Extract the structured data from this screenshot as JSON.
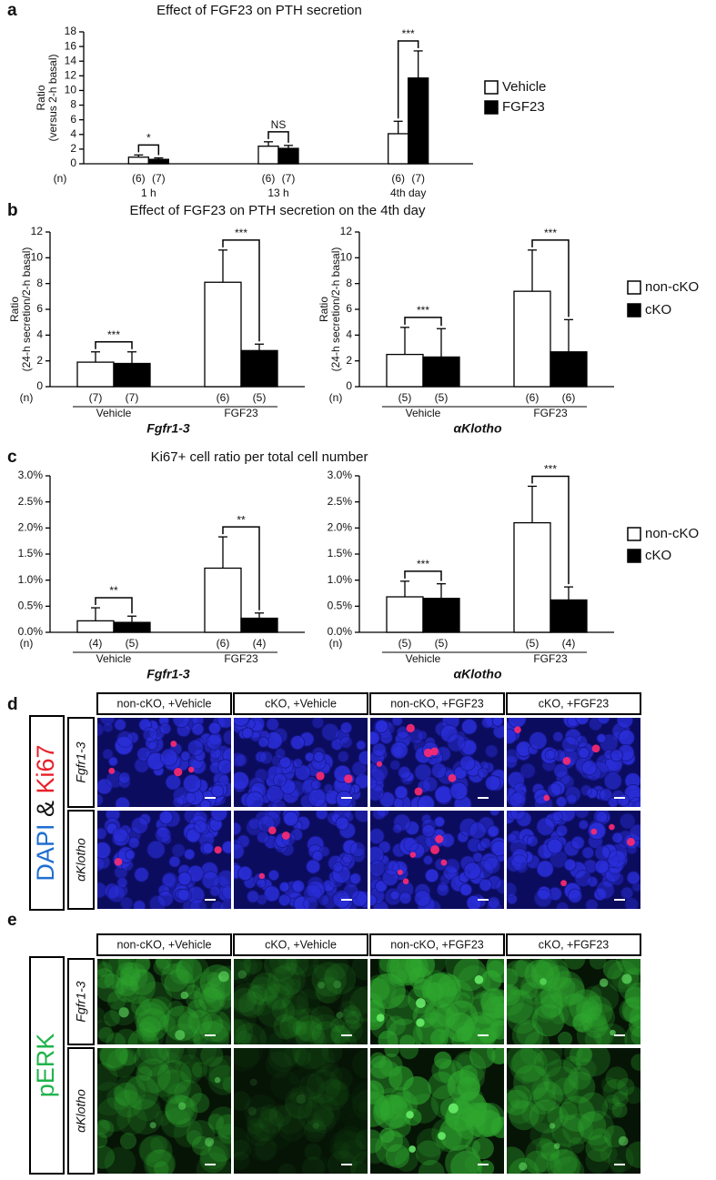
{
  "figure": {
    "panel_labels": [
      "a",
      "b",
      "c",
      "d",
      "e"
    ]
  },
  "chart_data": [
    {
      "type": "bar",
      "title": "Effect of FGF23 on PTH secretion",
      "ylabel": [
        "Ratio",
        "(versus 2-h basal)"
      ],
      "categories": [
        "1 h",
        "13 h",
        "4th day"
      ],
      "n_label": "(n)",
      "series": [
        {
          "name": "Vehicle",
          "color": "#ffffff",
          "values": [
            0.9,
            2.4,
            4.1
          ],
          "errors": [
            0.3,
            0.6,
            1.7
          ],
          "n_labels": [
            "(6)",
            "(6)",
            "(6)"
          ]
        },
        {
          "name": "FGF23",
          "color": "#000000",
          "values": [
            0.6,
            2.1,
            11.7
          ],
          "errors": [
            0.2,
            0.4,
            3.7
          ],
          "n_labels": [
            "(7)",
            "(7)",
            "(7)"
          ]
        }
      ],
      "significance": [
        "*",
        "NS",
        "***"
      ],
      "ylim": [
        0,
        18
      ],
      "yticks": [
        0,
        2,
        4,
        6,
        8,
        10,
        12,
        14,
        16,
        18
      ],
      "legend": "right"
    },
    {
      "type": "bar",
      "title": "Effect of FGF23 on PTH secretion on the 4th day",
      "ylabel": [
        "Ratio",
        "(24-h secretion/2-h basal)"
      ],
      "categories": [
        "Vehicle",
        "FGF23"
      ],
      "n_label": "(n)",
      "xlabel": "Fgfr1-3",
      "series": [
        {
          "name": "non-cKO",
          "color": "#ffffff",
          "values": [
            1.9,
            8.1
          ],
          "errors": [
            0.8,
            2.5
          ],
          "n_labels": [
            "(7)",
            "(6)"
          ]
        },
        {
          "name": "cKO",
          "color": "#000000",
          "values": [
            1.8,
            2.8
          ],
          "errors": [
            0.9,
            0.5
          ],
          "n_labels": [
            "(7)",
            "(5)"
          ]
        }
      ],
      "significance": [
        "***",
        "***"
      ],
      "ylim": [
        0,
        12
      ],
      "yticks": [
        0,
        2,
        4,
        6,
        8,
        10,
        12
      ]
    },
    {
      "type": "bar",
      "ylabel": [
        "Ratio",
        "(24-h secretion/2-h basal)"
      ],
      "categories": [
        "Vehicle",
        "FGF23"
      ],
      "n_label": "(n)",
      "xlabel": "αKlotho",
      "series": [
        {
          "name": "non-cKO",
          "color": "#ffffff",
          "values": [
            2.5,
            7.4
          ],
          "errors": [
            2.1,
            3.2
          ],
          "n_labels": [
            "(5)",
            "(6)"
          ]
        },
        {
          "name": "cKO",
          "color": "#000000",
          "values": [
            2.3,
            2.7
          ],
          "errors": [
            2.2,
            2.5
          ],
          "n_labels": [
            "(5)",
            "(6)"
          ]
        }
      ],
      "significance": [
        "***",
        "***"
      ],
      "ylim": [
        0,
        12
      ],
      "yticks": [
        0,
        2,
        4,
        6,
        8,
        10,
        12
      ],
      "legend": "right"
    },
    {
      "type": "bar",
      "title": "Ki67+ cell ratio per total cell number",
      "categories": [
        "Vehicle",
        "FGF23"
      ],
      "n_label": "(n)",
      "xlabel": "Fgfr1-3",
      "series": [
        {
          "name": "non-cKO",
          "color": "#ffffff",
          "values": [
            0.22,
            1.23
          ],
          "errors": [
            0.25,
            0.6
          ],
          "n_labels": [
            "(4)",
            "(6)"
          ]
        },
        {
          "name": "cKO",
          "color": "#000000",
          "values": [
            0.19,
            0.27
          ],
          "errors": [
            0.12,
            0.1
          ],
          "n_labels": [
            "(5)",
            "(4)"
          ]
        }
      ],
      "significance": [
        "**",
        "**"
      ],
      "ylim": [
        0,
        3
      ],
      "yticks": [
        {
          "value": 0,
          "label": "0.0%"
        },
        {
          "value": 0.5,
          "label": "0.5%"
        },
        {
          "value": 1,
          "label": "1.0%"
        },
        {
          "value": 1.5,
          "label": "1.5%"
        },
        {
          "value": 2,
          "label": "2.0%"
        },
        {
          "value": 2.5,
          "label": "2.5%"
        },
        {
          "value": 3,
          "label": "3.0%"
        }
      ]
    },
    {
      "type": "bar",
      "categories": [
        "Vehicle",
        "FGF23"
      ],
      "n_label": "(n)",
      "xlabel": "αKlotho",
      "series": [
        {
          "name": "non-cKO",
          "color": "#ffffff",
          "values": [
            0.68,
            2.1
          ],
          "errors": [
            0.3,
            0.7
          ],
          "n_labels": [
            "(5)",
            "(5)"
          ]
        },
        {
          "name": "cKO",
          "color": "#000000",
          "values": [
            0.65,
            0.62
          ],
          "errors": [
            0.28,
            0.25
          ],
          "n_labels": [
            "(5)",
            "(4)"
          ]
        }
      ],
      "significance": [
        "***",
        "***"
      ],
      "ylim": [
        0,
        3
      ],
      "yticks": [
        {
          "value": 0,
          "label": "0.0%"
        },
        {
          "value": 0.5,
          "label": "0.5%"
        },
        {
          "value": 1,
          "label": "1.0%"
        },
        {
          "value": 1.5,
          "label": "1.5%"
        },
        {
          "value": 2,
          "label": "2.0%"
        },
        {
          "value": 2.5,
          "label": "2.5%"
        },
        {
          "value": 3,
          "label": "3.0%"
        }
      ],
      "legend": "right"
    }
  ],
  "microscopy": [
    {
      "side_label": [
        "DAPI",
        "&",
        "Ki67"
      ],
      "columns": [
        "non-cKO, +Vehicle",
        "cKO, +Vehicle",
        "non-cKO, +FGF23",
        "cKO, +FGF23"
      ],
      "rows": [
        "Fgfr1-3",
        "αKlotho"
      ]
    },
    {
      "side_label": [
        "pERK"
      ],
      "columns": [
        "non-cKO, +Vehicle",
        "cKO, +Vehicle",
        "non-cKO, +FGF23",
        "cKO, +FGF23"
      ],
      "rows": [
        "Fgfr1-3",
        "αKlotho"
      ]
    }
  ]
}
